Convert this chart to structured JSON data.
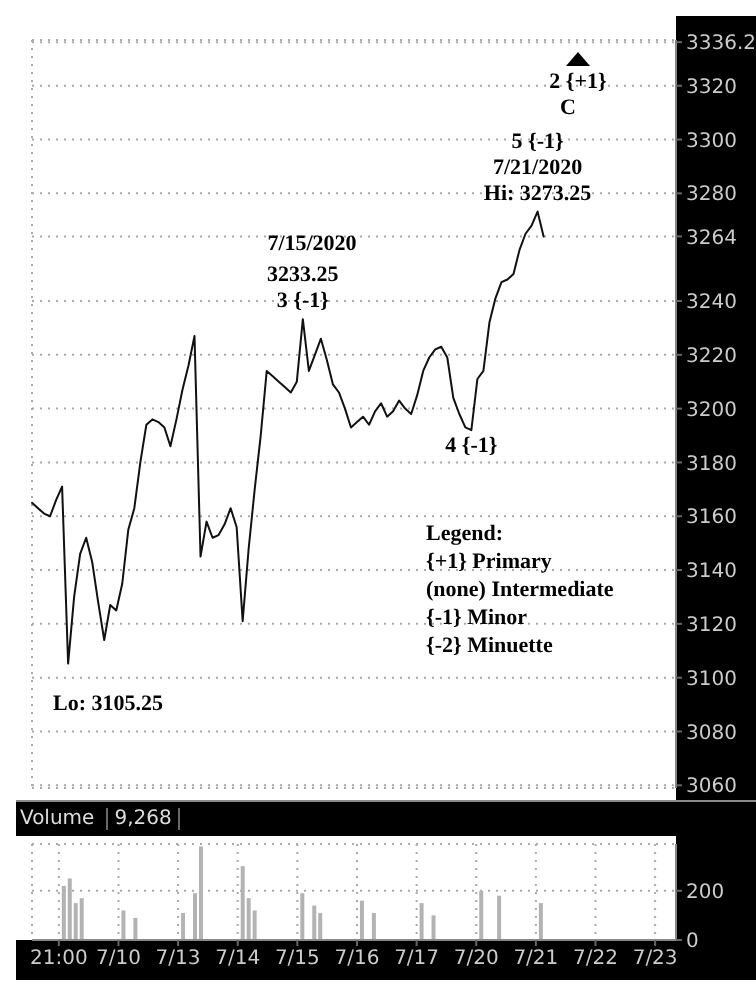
{
  "chart_data": [
    {
      "type": "line",
      "categories": [
        null,
        null,
        null,
        null,
        null,
        null,
        null,
        null,
        null,
        null,
        null,
        null,
        null,
        null,
        null,
        null,
        null,
        null,
        null,
        null,
        null,
        null,
        null,
        null,
        null,
        null,
        null,
        null,
        null,
        null,
        null,
        null,
        null,
        null,
        null,
        null,
        null,
        null,
        null,
        null,
        null,
        null,
        null,
        null,
        null,
        null,
        null,
        null,
        null,
        null,
        null,
        null,
        null,
        null,
        null,
        null,
        null,
        null,
        null,
        null,
        null,
        null,
        null,
        null,
        null,
        null,
        null,
        null,
        null,
        null,
        null,
        null,
        null,
        null,
        null,
        null,
        null,
        null,
        null,
        null,
        null,
        null,
        null,
        null,
        null,
        null,
        null,
        null,
        null,
        null,
        null,
        null,
        null,
        null,
        null,
        null,
        null,
        null,
        null,
        null,
        null,
        null,
        null,
        null,
        null,
        null,
        null,
        null
      ],
      "series": [
        {
          "color": "#111111",
          "values": [
            3165,
            3163,
            3161,
            3160,
            3166,
            3171,
            3105.25,
            3130,
            3146,
            3152,
            3143,
            3128,
            3114,
            3127,
            3125,
            3135,
            3155,
            3163,
            3180,
            3194,
            3196,
            3195,
            3193,
            3186,
            3196,
            3207,
            3216,
            3227,
            3145,
            3158,
            3152,
            3153,
            3157,
            3163,
            3156,
            3121,
            3148,
            3170,
            3190,
            3214,
            3212,
            3210,
            3208,
            3206,
            3210,
            3233.25,
            3214,
            3220,
            3226,
            3218,
            3209,
            3206,
            3200,
            3193,
            3195,
            3197,
            3194,
            3199,
            3202,
            3197,
            3199,
            3203,
            3200,
            3198,
            3205,
            3214,
            3219,
            3222,
            3223,
            3219,
            3204,
            3198,
            3193,
            3192,
            3211,
            3214,
            3232,
            3241,
            3247,
            3248,
            3250,
            3259,
            3265,
            3268,
            3273.25,
            3264,
            null,
            null,
            null,
            null,
            null,
            null,
            null,
            null,
            null,
            null,
            null,
            null,
            null,
            null,
            null,
            null,
            null,
            null,
            null,
            null,
            null,
            null
          ]
        }
      ],
      "ylim": [
        3059,
        3337
      ],
      "yticks": [
        3060,
        3080,
        3100,
        3120,
        3140,
        3160,
        3180,
        3200,
        3220,
        3240,
        3264,
        3280,
        3300,
        3320,
        3336.2
      ],
      "grid": true,
      "tick_labels": "y",
      "annotations": [
        {
          "text": "3 {-1}",
          "y": 3233.25
        },
        {
          "text": "3233.25",
          "y": 3233.25
        },
        {
          "text": "Hi: 3273.25",
          "y": 3273.25
        },
        {
          "text": "7/21/2020",
          "y": 3273.25
        },
        {
          "text": "5 {-1}",
          "y": 3273.25
        },
        {
          "text": "4 {-1}",
          "y": 3192
        },
        "7/15/2020",
        "C",
        "2 {+1}",
        "Lo: 3105.25",
        "Legend:",
        "{+1} Primary",
        "(none) Intermediate",
        "{-1} Minor",
        "{-2} Minuette"
      ]
    },
    {
      "type": "bar",
      "title": "Volume",
      "color": "#b3b3b3",
      "categories": [
        null,
        null,
        null,
        null,
        "21:00",
        null,
        null,
        null,
        null,
        null,
        null,
        null,
        null,
        null,
        "7/10",
        null,
        null,
        null,
        null,
        null,
        null,
        null,
        null,
        null,
        "7/13",
        null,
        null,
        null,
        null,
        null,
        null,
        null,
        null,
        null,
        "7/14",
        null,
        null,
        null,
        null,
        null,
        null,
        null,
        null,
        null,
        "7/15",
        null,
        null,
        null,
        null,
        null,
        null,
        null,
        null,
        null,
        "7/16",
        null,
        null,
        null,
        null,
        null,
        null,
        null,
        null,
        null,
        "7/17",
        null,
        null,
        null,
        null,
        null,
        null,
        null,
        null,
        null,
        "7/20",
        null,
        null,
        null,
        null,
        null,
        null,
        null,
        null,
        null,
        "7/21",
        null,
        null,
        null,
        null,
        null,
        null,
        null,
        null,
        null,
        "7/22",
        null,
        null,
        null,
        null,
        null,
        null,
        null,
        null,
        null,
        "7/23",
        null,
        null,
        null
      ],
      "values": [
        null,
        null,
        null,
        null,
        null,
        220,
        250,
        150,
        170,
        null,
        null,
        null,
        null,
        null,
        null,
        120,
        null,
        90,
        null,
        null,
        null,
        null,
        null,
        null,
        null,
        110,
        null,
        190,
        380,
        null,
        null,
        null,
        null,
        null,
        null,
        300,
        170,
        120,
        null,
        null,
        null,
        null,
        null,
        null,
        null,
        190,
        null,
        140,
        110,
        null,
        null,
        null,
        null,
        null,
        null,
        160,
        null,
        110,
        null,
        null,
        null,
        null,
        null,
        null,
        null,
        150,
        null,
        100,
        null,
        null,
        null,
        null,
        null,
        null,
        null,
        200,
        null,
        null,
        180,
        null,
        null,
        null,
        null,
        null,
        null,
        150,
        null,
        null,
        null,
        null,
        null,
        null,
        null,
        null,
        null,
        null,
        null,
        null,
        null,
        null,
        null,
        null,
        null,
        null,
        null,
        null,
        null,
        null
      ],
      "ylim": [
        0,
        390
      ],
      "yticks": [
        0,
        200
      ],
      "grid": true,
      "annotations": [
        "9,268"
      ]
    }
  ]
}
